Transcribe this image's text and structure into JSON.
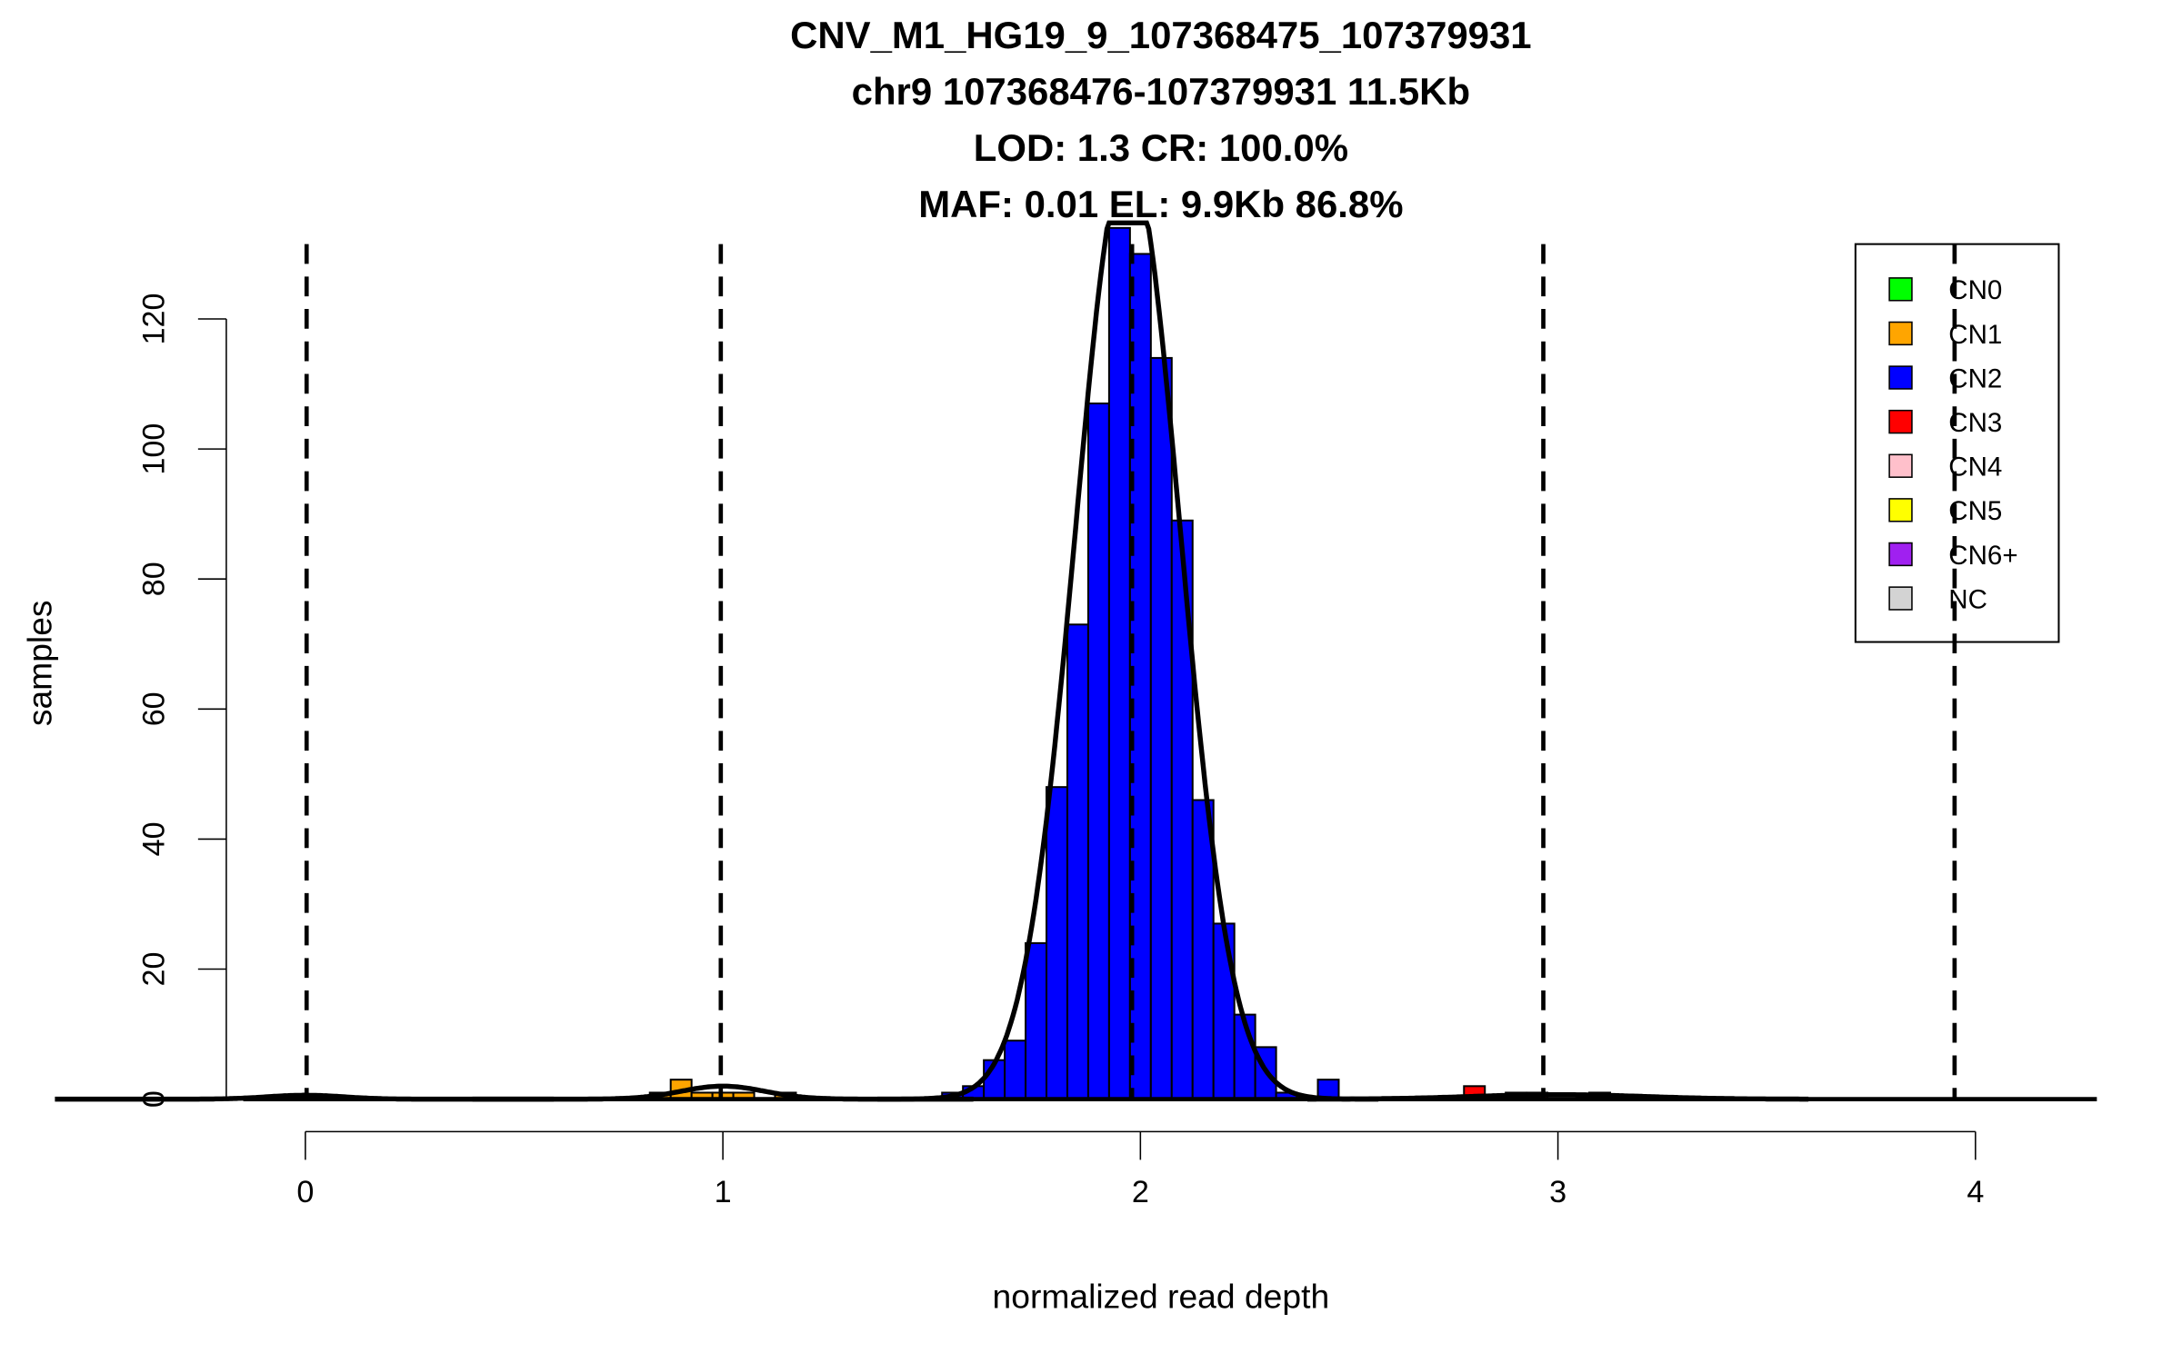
{
  "chart_data": {
    "type": "bar",
    "title_lines": [
      "CNV_M1_HG19_9_107368475_107379931",
      "chr9 107368476-107379931 11.5Kb",
      "LOD: 1.3 CR: 100.0%",
      "MAF: 0.01 EL: 9.9Kb 86.8%"
    ],
    "xlabel": "normalized read depth",
    "ylabel": "samples",
    "xlim": [
      -0.15,
      4.3
    ],
    "ylim": [
      0,
      134
    ],
    "x_ticks": [
      0,
      1,
      2,
      3,
      4
    ],
    "y_ticks": [
      0,
      20,
      40,
      60,
      80,
      100,
      120
    ],
    "bin_width": 0.05,
    "thresholds": [
      0.003,
      0.995,
      1.98,
      2.965,
      3.95
    ],
    "legend": {
      "placement": "top-right",
      "entries": [
        {
          "label": "CN0",
          "color": "#00ff00"
        },
        {
          "label": "CN1",
          "color": "#ffa500"
        },
        {
          "label": "CN2",
          "color": "#0000ff"
        },
        {
          "label": "CN3",
          "color": "#ff0000"
        },
        {
          "label": "CN4",
          "color": "#ffc0cb"
        },
        {
          "label": "CN5",
          "color": "#ffff00"
        },
        {
          "label": "CN6+",
          "color": "#a020f0"
        },
        {
          "label": "NC",
          "color": "#d3d3d3"
        }
      ]
    },
    "bars": [
      {
        "x": -0.025,
        "count": 0.5,
        "class": "CN0"
      },
      {
        "x": 0.825,
        "count": 1,
        "class": "CN1"
      },
      {
        "x": 0.875,
        "count": 3,
        "class": "CN1"
      },
      {
        "x": 0.925,
        "count": 1,
        "class": "CN1"
      },
      {
        "x": 0.975,
        "count": 1,
        "class": "CN1"
      },
      {
        "x": 1.025,
        "count": 1,
        "class": "CN1"
      },
      {
        "x": 1.125,
        "count": 1,
        "class": "CN1"
      },
      {
        "x": 1.525,
        "count": 1,
        "class": "CN2"
      },
      {
        "x": 1.575,
        "count": 2,
        "class": "CN2"
      },
      {
        "x": 1.625,
        "count": 6,
        "class": "CN2"
      },
      {
        "x": 1.675,
        "count": 9,
        "class": "CN2"
      },
      {
        "x": 1.725,
        "count": 24,
        "class": "CN2"
      },
      {
        "x": 1.775,
        "count": 48,
        "class": "CN2"
      },
      {
        "x": 1.825,
        "count": 73,
        "class": "CN2"
      },
      {
        "x": 1.875,
        "count": 107,
        "class": "CN2"
      },
      {
        "x": 1.925,
        "count": 134,
        "class": "CN2"
      },
      {
        "x": 1.975,
        "count": 130,
        "class": "CN2"
      },
      {
        "x": 2.025,
        "count": 114,
        "class": "CN2"
      },
      {
        "x": 2.075,
        "count": 89,
        "class": "CN2"
      },
      {
        "x": 2.125,
        "count": 46,
        "class": "CN2"
      },
      {
        "x": 2.175,
        "count": 27,
        "class": "CN2"
      },
      {
        "x": 2.225,
        "count": 13,
        "class": "CN2"
      },
      {
        "x": 2.275,
        "count": 8,
        "class": "CN2"
      },
      {
        "x": 2.325,
        "count": 1,
        "class": "CN2"
      },
      {
        "x": 2.425,
        "count": 3,
        "class": "CN2"
      },
      {
        "x": 2.775,
        "count": 2,
        "class": "CN3"
      },
      {
        "x": 2.875,
        "count": 1,
        "class": "CN3"
      },
      {
        "x": 2.925,
        "count": 1,
        "class": "CN3"
      },
      {
        "x": 3.075,
        "count": 1,
        "class": "CN3"
      }
    ],
    "fit_curves": [
      {
        "mean": 0.0,
        "sd": 0.09,
        "peak": 0.6
      },
      {
        "mean": 1.0,
        "sd": 0.1,
        "peak": 2.0
      },
      {
        "mean": 1.97,
        "sd": 0.125,
        "peak": 145
      },
      {
        "mean": 3.0,
        "sd": 0.2,
        "peak": 0.7
      }
    ]
  }
}
